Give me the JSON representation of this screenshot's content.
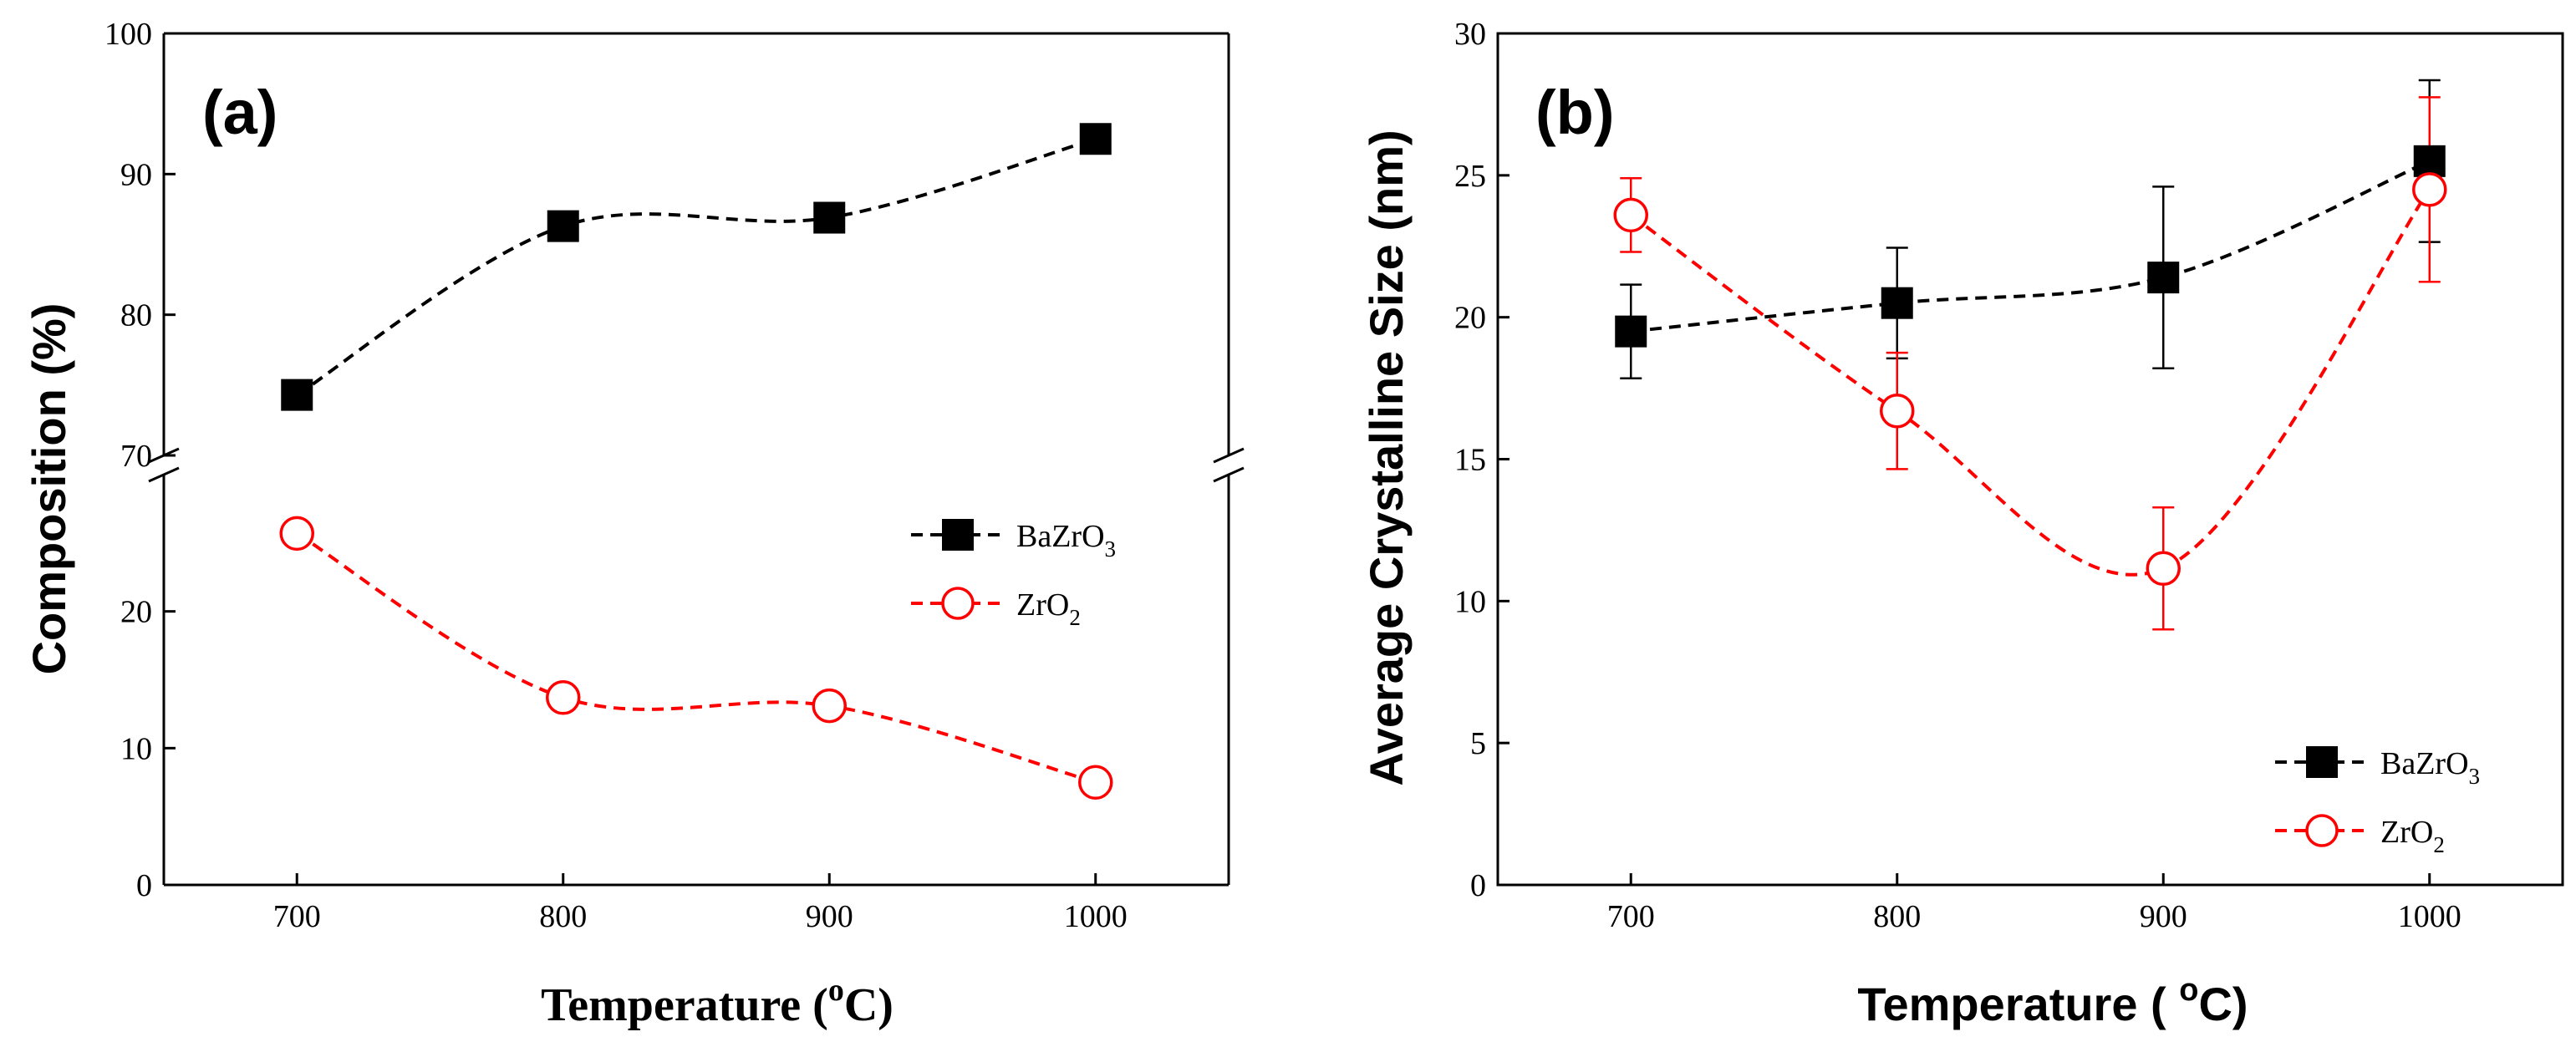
{
  "colors": {
    "bazro3": "#000000",
    "zro2": "#ff0000"
  },
  "chart_data": [
    {
      "panel_label": "(a)",
      "type": "line",
      "title": "",
      "xlabel_text": "Temperature (",
      "xlabel_sup": "o",
      "xlabel_unit": "C)",
      "ylabel": "Composition (%)",
      "x": [
        700,
        800,
        900,
        1000
      ],
      "xlim": [
        650,
        1050
      ],
      "xticks": [
        "700",
        "800",
        "900",
        "1000"
      ],
      "y_axis_break": {
        "lower_range": [
          0,
          30
        ],
        "upper_range": [
          70,
          100
        ]
      },
      "yticks_lower": [
        "0",
        "10",
        "20"
      ],
      "yticks_upper": [
        "70",
        "80",
        "90",
        "100"
      ],
      "legend_position": "center-right",
      "series": [
        {
          "name": "BaZrO",
          "name_sub": "3",
          "marker": "filled-square",
          "line": "dashed",
          "color": "#000000",
          "values": [
            74.3,
            86.3,
            86.9,
            92.5
          ]
        },
        {
          "name": "ZrO",
          "name_sub": "2",
          "marker": "open-circle",
          "line": "dashed",
          "color": "#ff0000",
          "values": [
            25.7,
            13.7,
            13.1,
            7.5
          ]
        }
      ]
    },
    {
      "panel_label": "(b)",
      "type": "line",
      "title": "",
      "xlabel_text": "Temperature ( ",
      "xlabel_sup": "o",
      "xlabel_unit": "C)",
      "ylabel": "Average Crystalline Size (nm)",
      "x": [
        700,
        800,
        900,
        1000
      ],
      "xlim": [
        650,
        1050
      ],
      "ylim": [
        0,
        30
      ],
      "xticks": [
        "700",
        "800",
        "900",
        "1000"
      ],
      "yticks": [
        "0",
        "5",
        "10",
        "15",
        "20",
        "25",
        "30"
      ],
      "legend_position": "bottom-right",
      "series": [
        {
          "name": "BaZrO",
          "name_sub": "3",
          "marker": "filled-square",
          "line": "dashed",
          "color": "#000000",
          "values": [
            19.5,
            20.5,
            21.4,
            25.5
          ],
          "errors": [
            1.65,
            1.95,
            3.2,
            2.85
          ]
        },
        {
          "name": "ZrO",
          "name_sub": "2",
          "marker": "open-circle",
          "line": "dashed",
          "color": "#ff0000",
          "values": [
            23.6,
            16.7,
            11.15,
            24.5
          ],
          "errors": [
            1.3,
            2.05,
            2.15,
            3.25
          ]
        }
      ]
    }
  ]
}
